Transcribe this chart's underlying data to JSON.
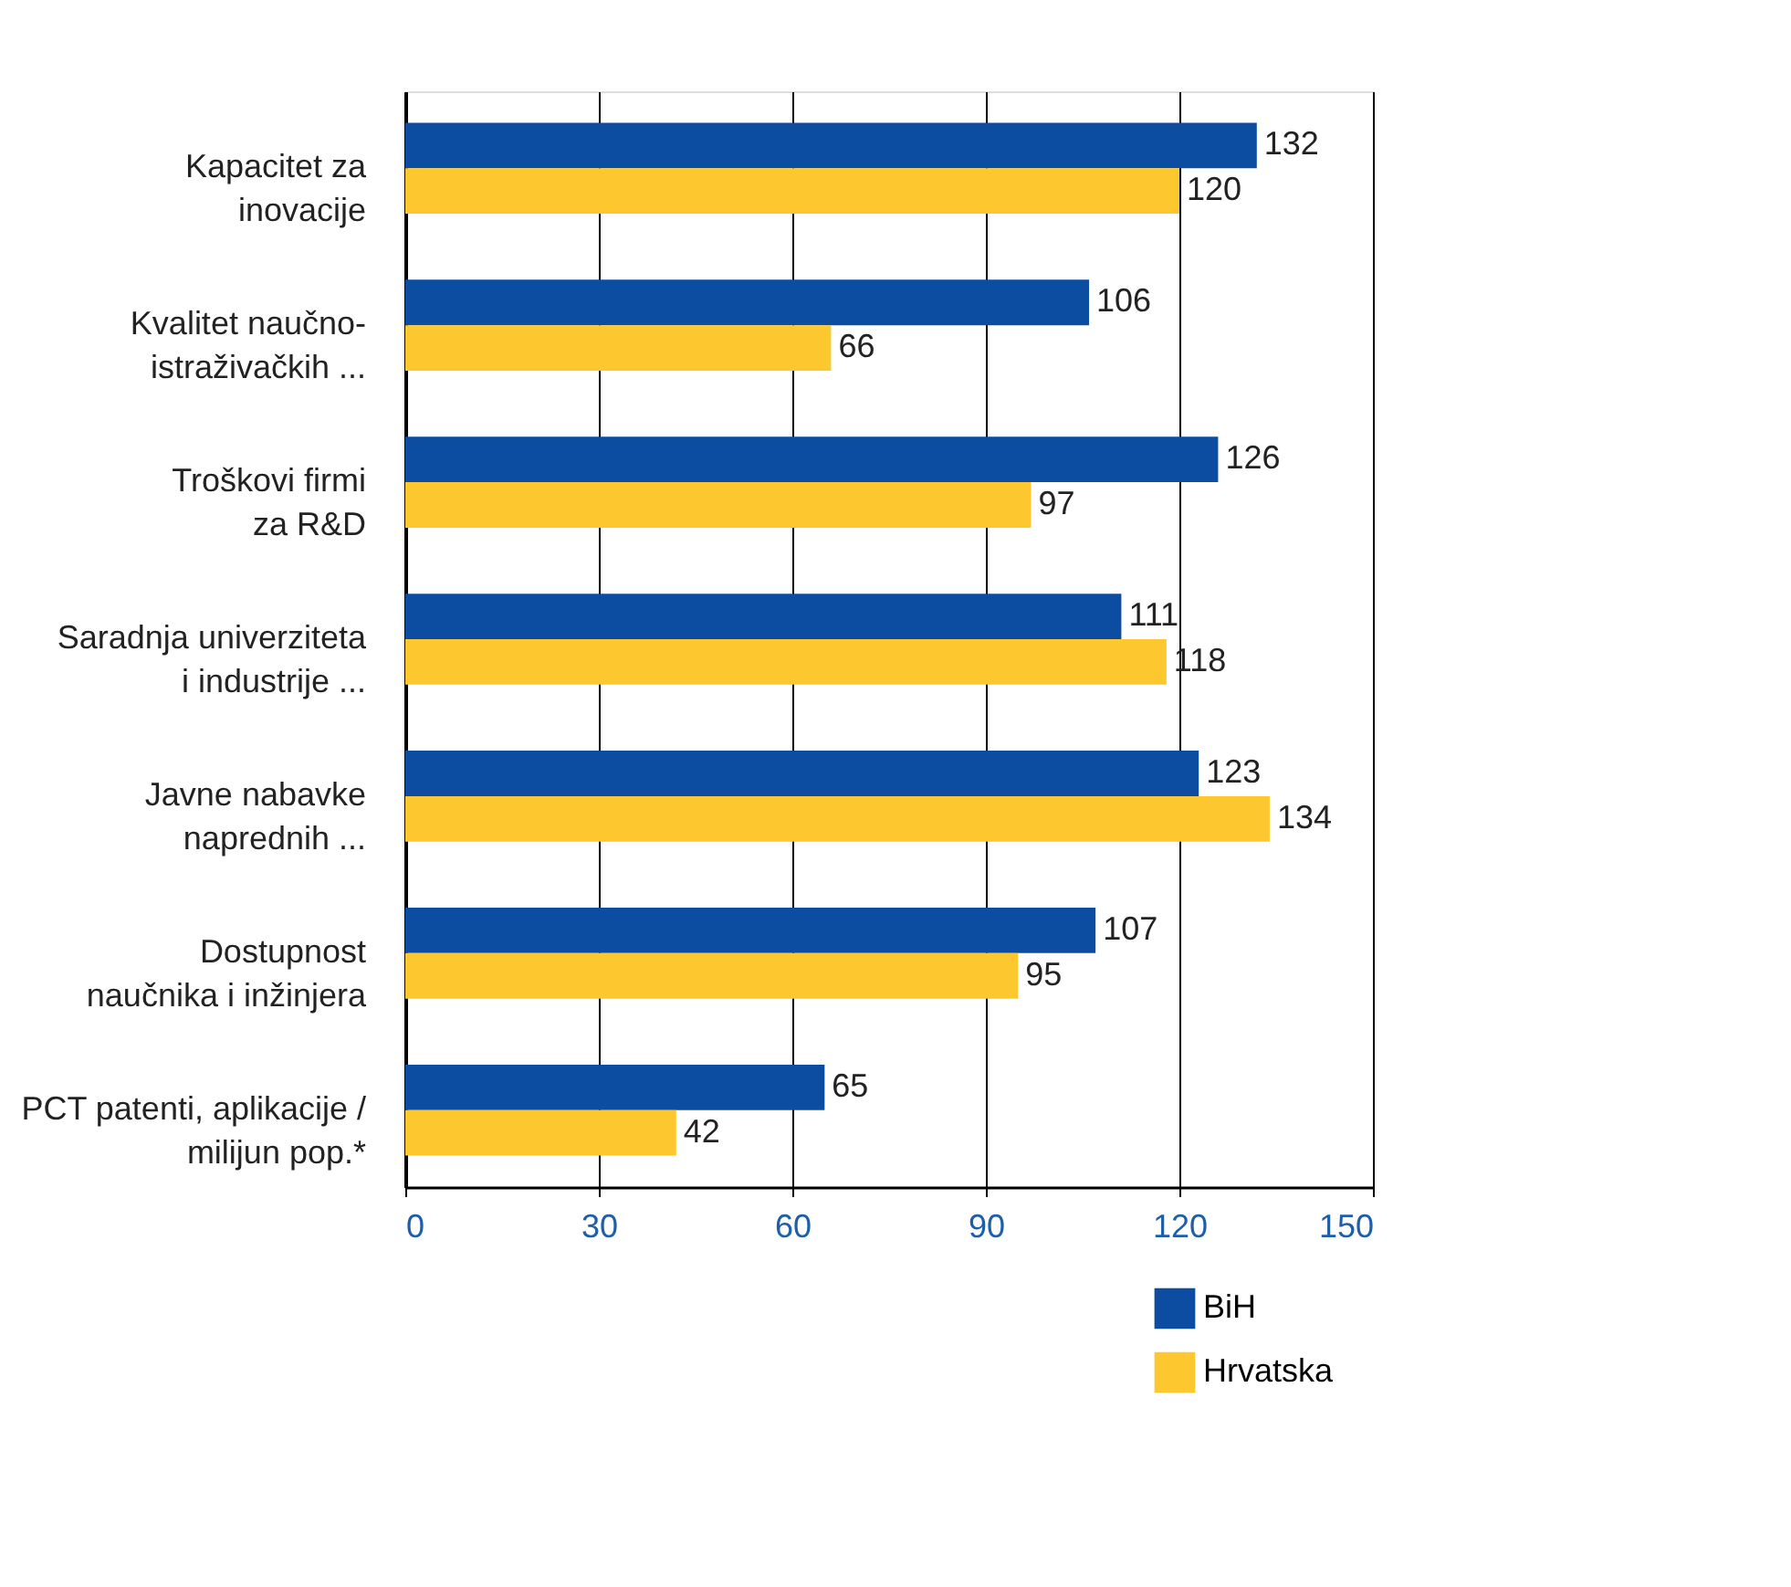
{
  "chart_data": {
    "type": "bar",
    "orientation": "horizontal",
    "categories": [
      "Kapacitet za\ninovacije",
      "Kvalitet naučno-\nistraživačkih ...",
      "Troškovi firmi\nza R&D",
      "Saradnja univerziteta\ni industrije ...",
      "Javne nabavke\nnaprednih ...",
      "Dostupnost\nnaučnika i inžinjera",
      "PCT patenti, aplikacije /\nmilijun pop.*"
    ],
    "series": [
      {
        "name": "BiH",
        "color": "#0c4da2",
        "values": [
          132,
          106,
          126,
          111,
          123,
          107,
          65
        ]
      },
      {
        "name": "Hrvatska",
        "color": "#fdc82f",
        "values": [
          120,
          66,
          97,
          118,
          134,
          95,
          42
        ]
      }
    ],
    "xlim": [
      0,
      150
    ],
    "xticks": [
      0,
      30,
      60,
      90,
      120,
      150
    ],
    "grid": "x",
    "data_labels": true,
    "legend": "bottom right"
  }
}
